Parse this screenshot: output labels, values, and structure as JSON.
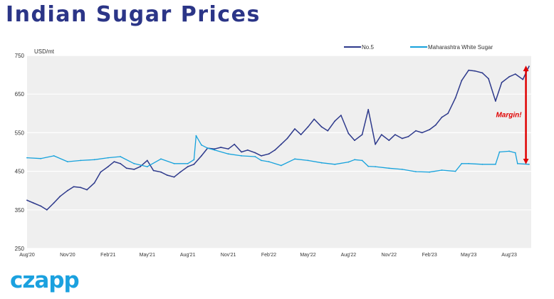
{
  "page_title": "Indian Sugar Prices",
  "logo_text": "czapp",
  "colors": {
    "title": "#2b3587",
    "no5": "#2e3a8c",
    "maharashtra": "#16a2dc",
    "margin_arrow": "#e00000",
    "logo": "#1ba1df",
    "plot_bg": "#efefef"
  },
  "chart_data": {
    "type": "line",
    "unit_label": "USD/mt",
    "ylim": [
      250,
      750
    ],
    "y_ticks": [
      250,
      350,
      450,
      550,
      650,
      750
    ],
    "xlim": [
      "2020-08-01",
      "2023-09-20"
    ],
    "x_ticks": [
      {
        "date": "2020-08-01",
        "label": "Aug'20"
      },
      {
        "date": "2020-11-01",
        "label": "Nov'20"
      },
      {
        "date": "2021-02-01",
        "label": "Feb'21"
      },
      {
        "date": "2021-05-01",
        "label": "May'21"
      },
      {
        "date": "2021-08-01",
        "label": "Aug'21"
      },
      {
        "date": "2021-11-01",
        "label": "Nov'21"
      },
      {
        "date": "2022-02-01",
        "label": "Feb'22"
      },
      {
        "date": "2022-05-01",
        "label": "May'22"
      },
      {
        "date": "2022-08-01",
        "label": "Aug'22"
      },
      {
        "date": "2022-11-01",
        "label": "Nov'22"
      },
      {
        "date": "2023-02-01",
        "label": "Feb'23"
      },
      {
        "date": "2023-05-01",
        "label": "May'23"
      },
      {
        "date": "2023-08-01",
        "label": "Aug'23"
      }
    ],
    "grid": "horizontal",
    "legend_position": "top-right",
    "series": [
      {
        "name": "No.5",
        "color": "#2e3a8c",
        "points": [
          [
            "2020-08-01",
            375
          ],
          [
            "2020-08-15",
            368
          ],
          [
            "2020-09-01",
            360
          ],
          [
            "2020-09-15",
            350
          ],
          [
            "2020-10-01",
            368
          ],
          [
            "2020-10-15",
            385
          ],
          [
            "2020-11-01",
            400
          ],
          [
            "2020-11-15",
            410
          ],
          [
            "2020-12-01",
            408
          ],
          [
            "2020-12-15",
            402
          ],
          [
            "2021-01-01",
            420
          ],
          [
            "2021-01-15",
            448
          ],
          [
            "2021-02-01",
            462
          ],
          [
            "2021-02-15",
            475
          ],
          [
            "2021-03-01",
            470
          ],
          [
            "2021-03-15",
            458
          ],
          [
            "2021-04-01",
            455
          ],
          [
            "2021-04-15",
            462
          ],
          [
            "2021-05-01",
            478
          ],
          [
            "2021-05-15",
            452
          ],
          [
            "2021-06-01",
            448
          ],
          [
            "2021-06-15",
            440
          ],
          [
            "2021-07-01",
            435
          ],
          [
            "2021-07-15",
            448
          ],
          [
            "2021-08-01",
            462
          ],
          [
            "2021-08-15",
            468
          ],
          [
            "2021-09-01",
            490
          ],
          [
            "2021-09-15",
            510
          ],
          [
            "2021-10-01",
            508
          ],
          [
            "2021-10-15",
            512
          ],
          [
            "2021-11-01",
            508
          ],
          [
            "2021-11-15",
            520
          ],
          [
            "2021-12-01",
            500
          ],
          [
            "2021-12-15",
            505
          ],
          [
            "2022-01-01",
            498
          ],
          [
            "2022-01-15",
            490
          ],
          [
            "2022-02-01",
            495
          ],
          [
            "2022-02-15",
            505
          ],
          [
            "2022-03-01",
            520
          ],
          [
            "2022-03-15",
            535
          ],
          [
            "2022-04-01",
            560
          ],
          [
            "2022-04-15",
            545
          ],
          [
            "2022-05-01",
            565
          ],
          [
            "2022-05-15",
            585
          ],
          [
            "2022-06-01",
            565
          ],
          [
            "2022-06-15",
            555
          ],
          [
            "2022-07-01",
            580
          ],
          [
            "2022-07-15",
            595
          ],
          [
            "2022-08-01",
            548
          ],
          [
            "2022-08-15",
            530
          ],
          [
            "2022-09-01",
            545
          ],
          [
            "2022-09-15",
            610
          ],
          [
            "2022-10-01",
            520
          ],
          [
            "2022-10-15",
            545
          ],
          [
            "2022-11-01",
            530
          ],
          [
            "2022-11-15",
            545
          ],
          [
            "2022-12-01",
            535
          ],
          [
            "2022-12-15",
            540
          ],
          [
            "2023-01-01",
            555
          ],
          [
            "2023-01-15",
            550
          ],
          [
            "2023-02-01",
            558
          ],
          [
            "2023-02-15",
            570
          ],
          [
            "2023-03-01",
            590
          ],
          [
            "2023-03-15",
            600
          ],
          [
            "2023-04-01",
            640
          ],
          [
            "2023-04-15",
            685
          ],
          [
            "2023-05-01",
            712
          ],
          [
            "2023-05-15",
            710
          ],
          [
            "2023-06-01",
            705
          ],
          [
            "2023-06-15",
            690
          ],
          [
            "2023-07-01",
            632
          ],
          [
            "2023-07-15",
            680
          ],
          [
            "2023-08-01",
            695
          ],
          [
            "2023-08-15",
            702
          ],
          [
            "2023-09-01",
            688
          ],
          [
            "2023-09-15",
            722
          ]
        ]
      },
      {
        "name": "Maharashtra White Sugar",
        "color": "#16a2dc",
        "points": [
          [
            "2020-08-01",
            485
          ],
          [
            "2020-09-01",
            483
          ],
          [
            "2020-10-01",
            490
          ],
          [
            "2020-11-01",
            475
          ],
          [
            "2020-12-01",
            478
          ],
          [
            "2021-01-01",
            480
          ],
          [
            "2021-02-01",
            485
          ],
          [
            "2021-03-01",
            488
          ],
          [
            "2021-04-01",
            470
          ],
          [
            "2021-05-01",
            462
          ],
          [
            "2021-06-01",
            482
          ],
          [
            "2021-07-01",
            470
          ],
          [
            "2021-08-01",
            470
          ],
          [
            "2021-08-15",
            480
          ],
          [
            "2021-08-20",
            542
          ],
          [
            "2021-09-01",
            518
          ],
          [
            "2021-09-15",
            510
          ],
          [
            "2021-10-01",
            505
          ],
          [
            "2021-11-01",
            495
          ],
          [
            "2021-12-01",
            490
          ],
          [
            "2022-01-01",
            488
          ],
          [
            "2022-01-15",
            478
          ],
          [
            "2022-02-01",
            475
          ],
          [
            "2022-03-01",
            465
          ],
          [
            "2022-04-01",
            482
          ],
          [
            "2022-05-01",
            478
          ],
          [
            "2022-06-01",
            472
          ],
          [
            "2022-07-01",
            468
          ],
          [
            "2022-08-01",
            474
          ],
          [
            "2022-08-15",
            480
          ],
          [
            "2022-09-01",
            478
          ],
          [
            "2022-09-15",
            463
          ],
          [
            "2022-10-01",
            462
          ],
          [
            "2022-11-01",
            458
          ],
          [
            "2022-12-01",
            455
          ],
          [
            "2023-01-01",
            449
          ],
          [
            "2023-02-01",
            448
          ],
          [
            "2023-03-01",
            453
          ],
          [
            "2023-04-01",
            450
          ],
          [
            "2023-04-15",
            470
          ],
          [
            "2023-05-01",
            470
          ],
          [
            "2023-06-01",
            468
          ],
          [
            "2023-07-01",
            468
          ],
          [
            "2023-07-10",
            500
          ],
          [
            "2023-08-01",
            502
          ],
          [
            "2023-08-15",
            498
          ],
          [
            "2023-08-20",
            470
          ],
          [
            "2023-09-15",
            468
          ]
        ]
      }
    ],
    "annotation": {
      "text": "Margin!",
      "from_value": 470,
      "to_value": 722,
      "date": "2023-09-08"
    }
  }
}
